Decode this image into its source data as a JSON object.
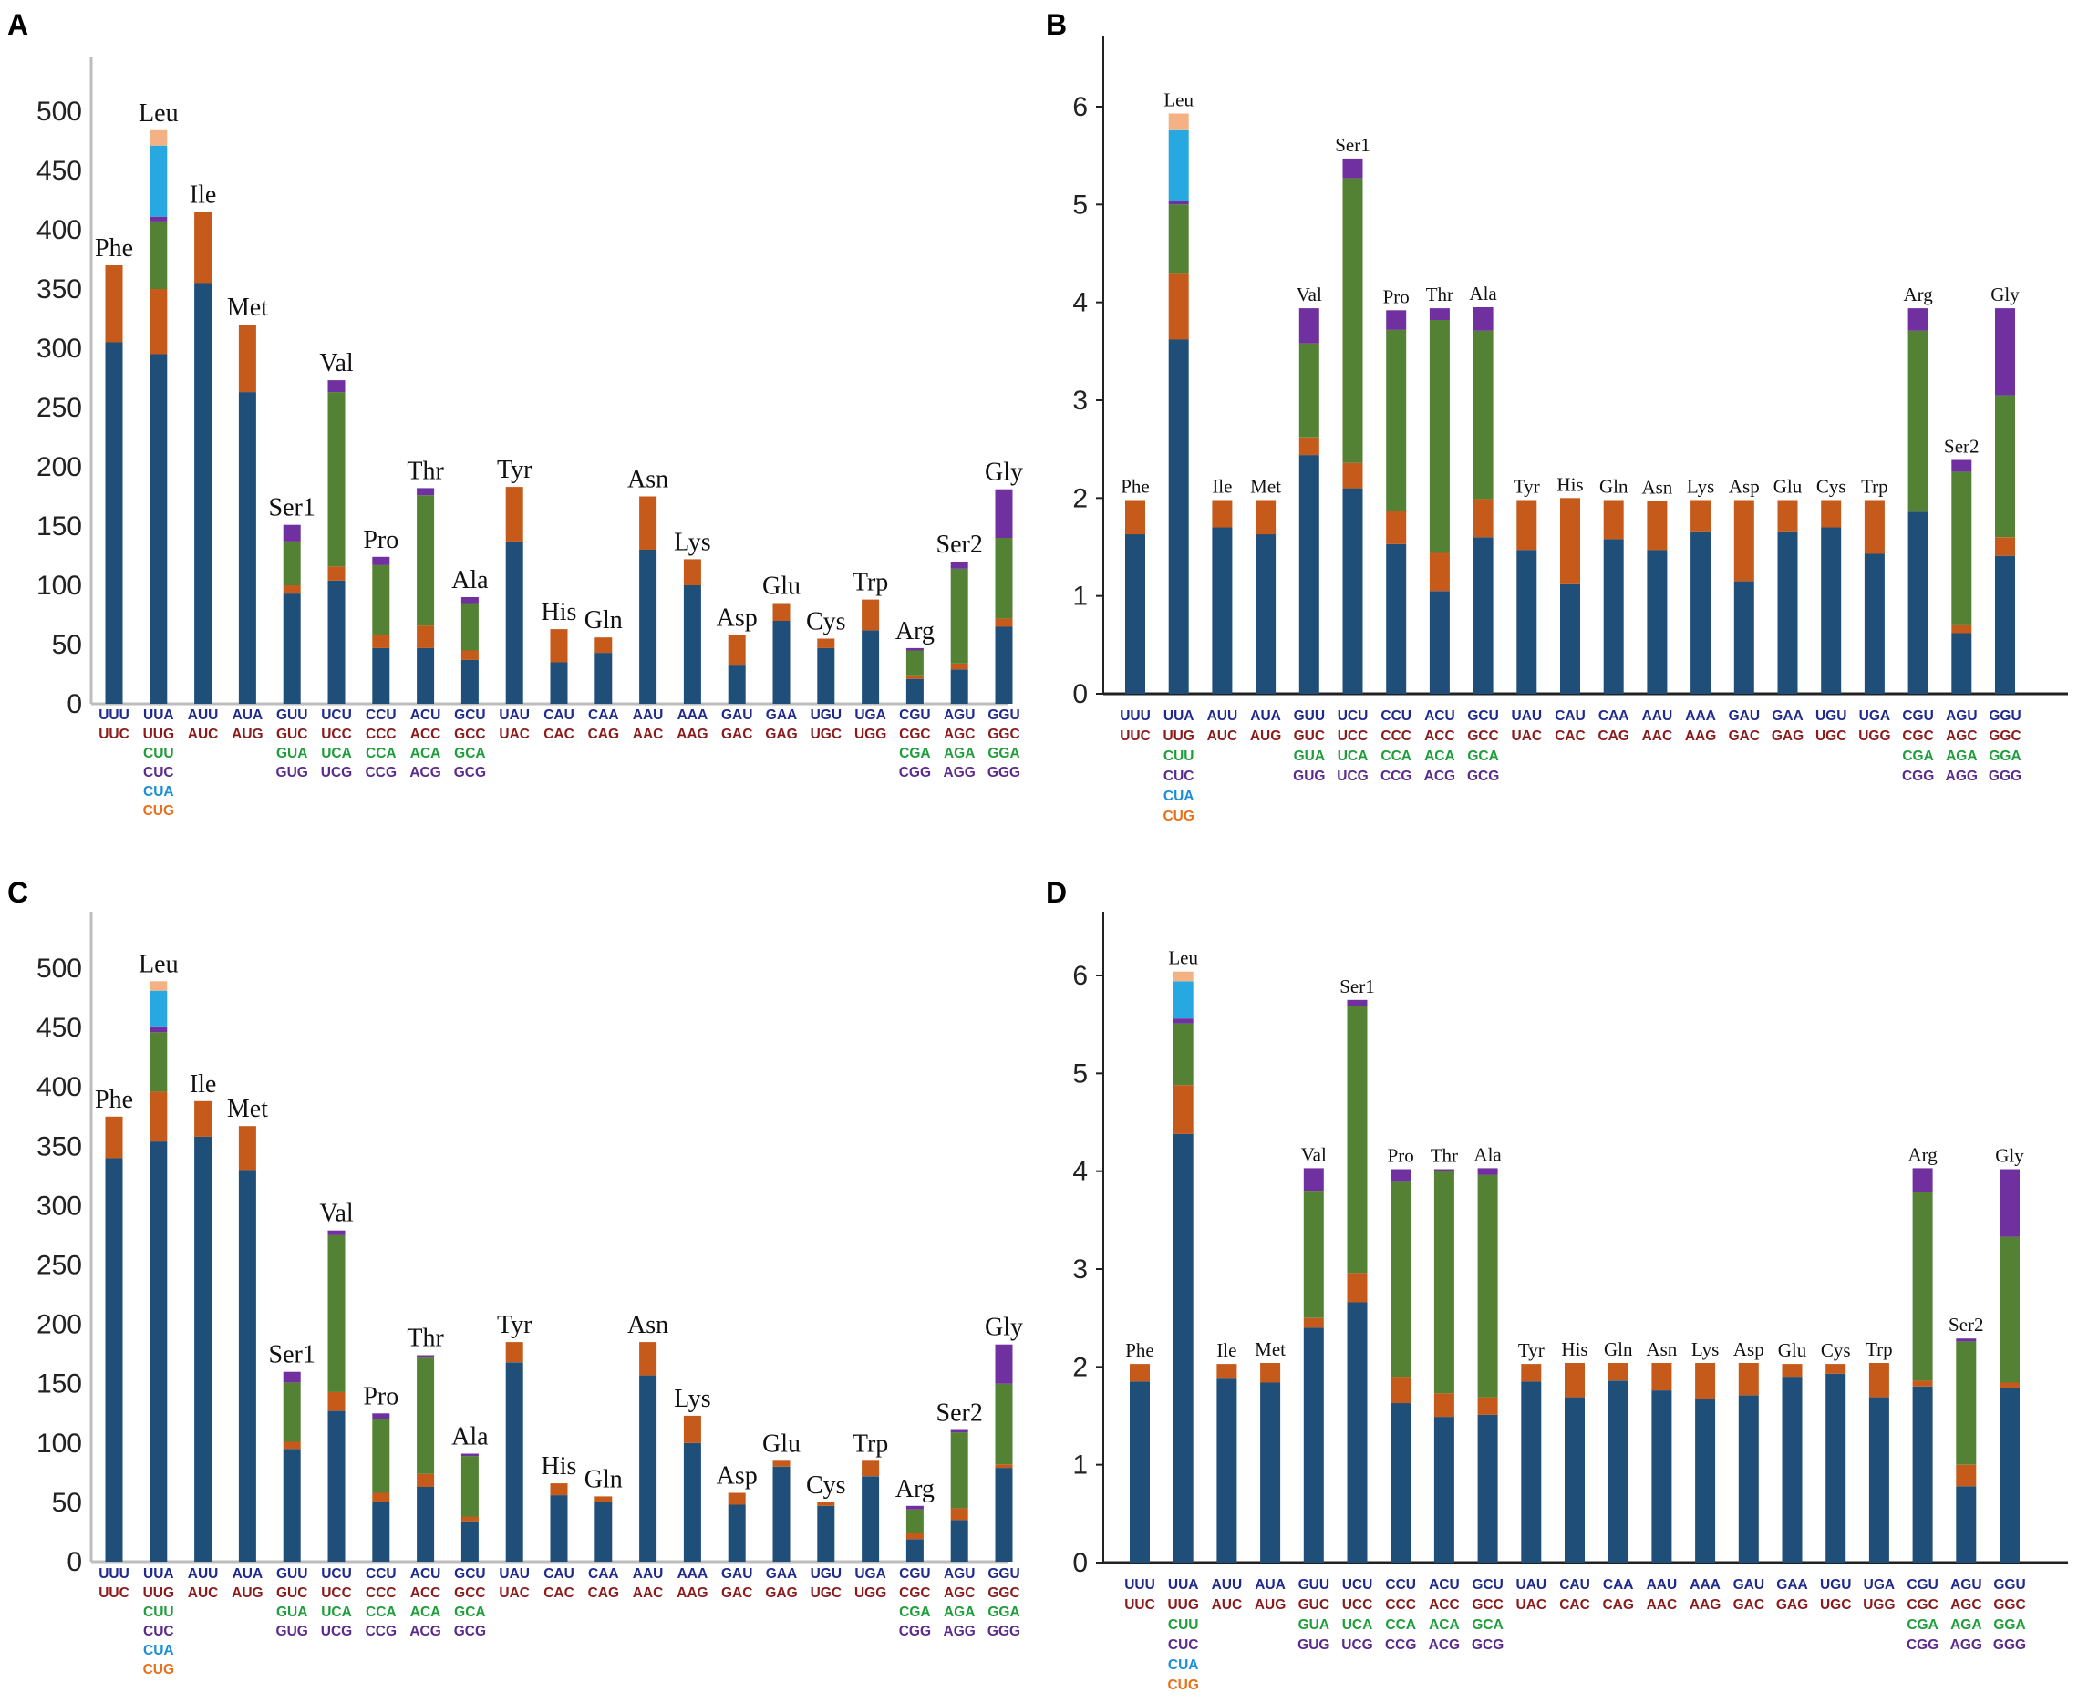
{
  "colors": {
    "c1": "#1f4e79",
    "c2": "#c55a1a",
    "c3": "#548235",
    "c4": "#7030a0",
    "c5": "#28a8e0",
    "c6": "#f4b183",
    "codon_row1": "#1f2a8c",
    "codon_row2": "#8b1a1a",
    "codon_green": "#1e9e3a",
    "codon_purple": "#5b2a8c",
    "codon_blue": "#1a8ed8",
    "codon_orange": "#e8701a"
  },
  "codon_rows": [
    [
      "UUU",
      "UUA",
      "AUU",
      "AUA",
      "GUU",
      "UCU",
      "CCU",
      "ACU",
      "GCU",
      "UAU",
      "CAU",
      "CAA",
      "AAU",
      "AAA",
      "GAU",
      "GAA",
      "UGU",
      "UGA",
      "CGU",
      "AGU",
      "GGU"
    ],
    [
      "UUC",
      "UUG",
      "AUC",
      "AUG",
      "GUC",
      "UCC",
      "CCC",
      "ACC",
      "GCC",
      "UAC",
      "CAC",
      "CAG",
      "AAC",
      "AAG",
      "GAC",
      "GAG",
      "UGC",
      "UGG",
      "CGC",
      "AGC",
      "GGC"
    ]
  ],
  "codon_extra": [
    {
      "col": 1,
      "rows": [
        "CUU",
        "CUC",
        "CUA",
        "CUG"
      ]
    },
    {
      "col": 4,
      "rows": [
        "GUA",
        "GUG"
      ]
    },
    {
      "col": 5,
      "rows": [
        "UCA",
        "UCG"
      ]
    },
    {
      "col": 6,
      "rows": [
        "CCA",
        "CCG"
      ]
    },
    {
      "col": 7,
      "rows": [
        "ACA",
        "ACG"
      ]
    },
    {
      "col": 8,
      "rows": [
        "GCA",
        "GCG"
      ]
    },
    {
      "col": 18,
      "rows": [
        "CGA",
        "CGG"
      ]
    },
    {
      "col": 19,
      "rows": [
        "AGA",
        "AGG"
      ]
    },
    {
      "col": 20,
      "rows": [
        "GGA",
        "GGG"
      ]
    }
  ],
  "chart_data": [
    {
      "panel": "A",
      "type": "bar",
      "stacked": true,
      "categories": [
        "Phe",
        "Leu",
        "Ile",
        "Met",
        "Ser1",
        "Val",
        "Pro",
        "Thr",
        "Ala",
        "Tyr",
        "His",
        "Gln",
        "Asn",
        "Lys",
        "Asp",
        "Glu",
        "Cys",
        "Trp",
        "Arg",
        "Ser2",
        "Gly"
      ],
      "ylim": [
        0,
        550
      ],
      "yticks": [
        0,
        50,
        100,
        150,
        200,
        250,
        300,
        350,
        400,
        450,
        500
      ],
      "segments": [
        [
          305,
          65
        ],
        [
          295,
          55,
          57,
          4,
          60,
          13
        ],
        [
          355,
          60
        ],
        [
          263,
          57
        ],
        [
          93,
          7,
          37,
          14
        ],
        [
          104,
          12,
          147,
          10
        ],
        [
          47,
          11,
          59,
          7
        ],
        [
          47,
          19,
          110,
          6
        ],
        [
          37,
          8,
          40,
          5
        ],
        [
          137,
          46
        ],
        [
          35,
          28
        ],
        [
          43,
          13
        ],
        [
          130,
          45
        ],
        [
          100,
          22
        ],
        [
          33,
          25
        ],
        [
          70,
          15
        ],
        [
          47,
          8
        ],
        [
          62,
          26
        ],
        [
          21,
          3,
          21,
          2
        ],
        [
          29,
          5,
          80,
          6
        ],
        [
          65,
          7,
          68,
          41
        ]
      ]
    },
    {
      "panel": "B",
      "type": "bar",
      "stacked": true,
      "categories": [
        "Phe",
        "Leu",
        "Ile",
        "Met",
        "Val",
        "Ser1",
        "Pro",
        "Thr",
        "Ala",
        "Tyr",
        "His",
        "Gln",
        "Asn",
        "Lys",
        "Asp",
        "Glu",
        "Cys",
        "Trp",
        "Arg",
        "Ser2",
        "Gly"
      ],
      "ylim": [
        0,
        6.4
      ],
      "yticks": [
        0,
        1,
        2,
        3,
        4,
        5,
        6
      ],
      "segments": [
        [
          1.63,
          0.35
        ],
        [
          3.62,
          0.68,
          0.7,
          0.04,
          0.72,
          0.17
        ],
        [
          1.7,
          0.28
        ],
        [
          1.63,
          0.35
        ],
        [
          2.44,
          0.18,
          0.96,
          0.36
        ],
        [
          2.1,
          0.26,
          2.91,
          0.2
        ],
        [
          1.53,
          0.34,
          1.85,
          0.2
        ],
        [
          1.05,
          0.39,
          2.38,
          0.12
        ],
        [
          1.6,
          0.39,
          1.72,
          0.24
        ],
        [
          1.47,
          0.51
        ],
        [
          1.12,
          0.88
        ],
        [
          1.58,
          0.4
        ],
        [
          1.47,
          0.5
        ],
        [
          1.66,
          0.32
        ],
        [
          1.15,
          0.83
        ],
        [
          1.66,
          0.32
        ],
        [
          1.7,
          0.28
        ],
        [
          1.43,
          0.55
        ],
        [
          1.86,
          0.0,
          1.85,
          0.23
        ],
        [
          0.62,
          0.08,
          1.57,
          0.12
        ],
        [
          1.41,
          0.19,
          1.45,
          0.89
        ]
      ]
    },
    {
      "panel": "C",
      "type": "bar",
      "stacked": true,
      "categories": [
        "Phe",
        "Leu",
        "Ile",
        "Met",
        "Ser1",
        "Val",
        "Pro",
        "Thr",
        "Ala",
        "Tyr",
        "His",
        "Gln",
        "Asn",
        "Lys",
        "Asp",
        "Glu",
        "Cys",
        "Trp",
        "Arg",
        "Ser2",
        "Gly"
      ],
      "ylim": [
        0,
        550
      ],
      "yticks": [
        0,
        50,
        100,
        150,
        200,
        250,
        300,
        350,
        400,
        450,
        500
      ],
      "segments": [
        [
          340,
          35
        ],
        [
          354,
          42,
          50,
          5,
          30,
          8
        ],
        [
          358,
          30
        ],
        [
          330,
          37
        ],
        [
          95,
          6,
          50,
          9
        ],
        [
          127,
          16,
          132,
          4
        ],
        [
          50,
          8,
          62,
          5
        ],
        [
          63,
          11,
          98,
          2
        ],
        [
          34,
          4,
          51,
          2
        ],
        [
          168,
          17
        ],
        [
          56,
          10
        ],
        [
          50,
          5
        ],
        [
          157,
          28
        ],
        [
          100,
          23
        ],
        [
          48,
          10
        ],
        [
          80,
          5
        ],
        [
          47,
          3
        ],
        [
          72,
          13
        ],
        [
          19,
          5,
          20,
          3
        ],
        [
          35,
          10,
          64,
          2
        ],
        [
          79,
          3,
          68,
          33
        ]
      ]
    },
    {
      "panel": "D",
      "type": "bar",
      "stacked": true,
      "categories": [
        "Phe",
        "Leu",
        "Ile",
        "Met",
        "Val",
        "Ser1",
        "Pro",
        "Thr",
        "Ala",
        "Tyr",
        "His",
        "Gln",
        "Asn",
        "Lys",
        "Asp",
        "Glu",
        "Cys",
        "Trp",
        "Arg",
        "Ser2",
        "Gly"
      ],
      "ylim": [
        0,
        6.4
      ],
      "yticks": [
        0,
        1,
        2,
        3,
        4,
        5,
        6
      ],
      "segments": [
        [
          1.85,
          0.18
        ],
        [
          4.38,
          0.5,
          0.63,
          0.05,
          0.38,
          0.1
        ],
        [
          1.88,
          0.15
        ],
        [
          1.84,
          0.2
        ],
        [
          2.4,
          0.1,
          1.3,
          0.23
        ],
        [
          2.66,
          0.3,
          2.73,
          0.06
        ],
        [
          1.63,
          0.27,
          2.0,
          0.12
        ],
        [
          1.49,
          0.24,
          2.27,
          0.02
        ],
        [
          1.51,
          0.18,
          2.27,
          0.07
        ],
        [
          1.85,
          0.18
        ],
        [
          1.69,
          0.35
        ],
        [
          1.86,
          0.18
        ],
        [
          1.76,
          0.28
        ],
        [
          1.67,
          0.37
        ],
        [
          1.71,
          0.33
        ],
        [
          1.9,
          0.13
        ],
        [
          1.93,
          0.1
        ],
        [
          1.69,
          0.35
        ],
        [
          1.8,
          0.06,
          1.93,
          0.24
        ],
        [
          0.78,
          0.22,
          1.26,
          0.03
        ],
        [
          1.78,
          0.06,
          1.49,
          0.69
        ]
      ]
    }
  ]
}
